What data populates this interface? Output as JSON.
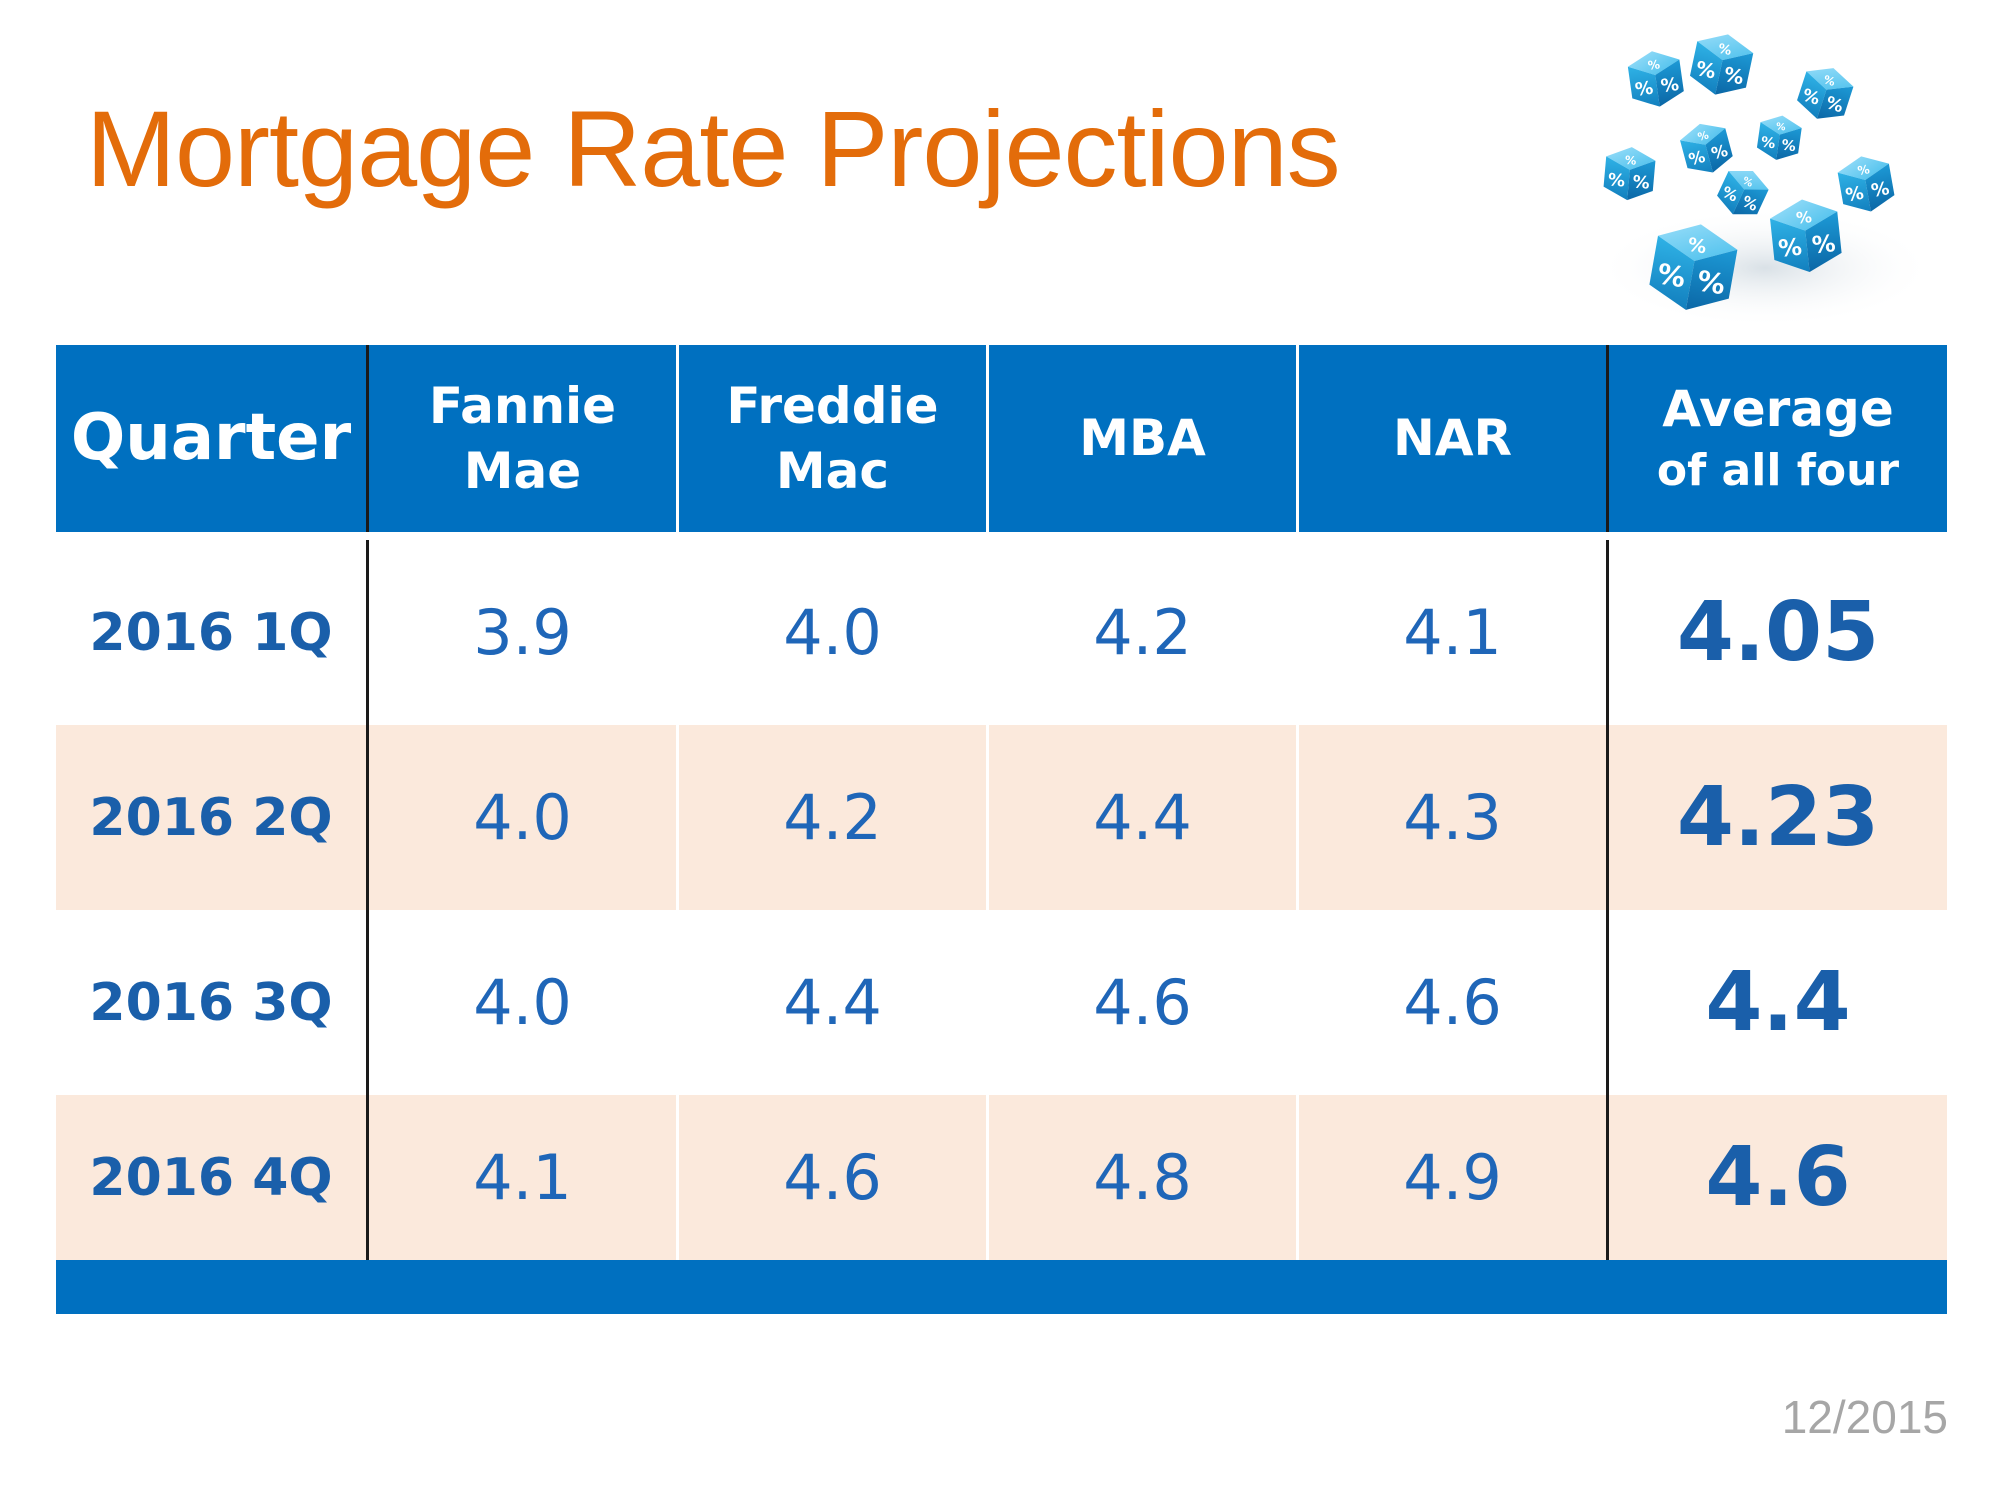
{
  "title": "Mortgage Rate Projections",
  "date_label": "12/2015",
  "colors": {
    "title": "#E36C0A",
    "header_bg": "#0070C0",
    "row_shade": "#FBE9DC",
    "value_text": "#1F66B8",
    "date_text": "#A6A6A6"
  },
  "decor": {
    "icon": "percent-dice-image",
    "glyph": "%"
  },
  "chart_data": {
    "type": "table",
    "columns": [
      {
        "line1": "Quarter",
        "line2": ""
      },
      {
        "line1": "Fannie",
        "line2": "Mae"
      },
      {
        "line1": "Freddie",
        "line2": "Mac"
      },
      {
        "line1": "MBA",
        "line2": ""
      },
      {
        "line1": "NAR",
        "line2": ""
      },
      {
        "line1": "Average",
        "line2": "of all four"
      }
    ],
    "rows": [
      {
        "quarter": "2016 1Q",
        "fannie_mae": "3.9",
        "freddie_mac": "4.0",
        "mba": "4.2",
        "nar": "4.1",
        "average": "4.05"
      },
      {
        "quarter": "2016 2Q",
        "fannie_mae": "4.0",
        "freddie_mac": "4.2",
        "mba": "4.4",
        "nar": "4.3",
        "average": "4.23"
      },
      {
        "quarter": "2016 3Q",
        "fannie_mae": "4.0",
        "freddie_mac": "4.4",
        "mba": "4.6",
        "nar": "4.6",
        "average": "4.4"
      },
      {
        "quarter": "2016 4Q",
        "fannie_mae": "4.1",
        "freddie_mac": "4.6",
        "mba": "4.8",
        "nar": "4.9",
        "average": "4.6"
      }
    ]
  }
}
